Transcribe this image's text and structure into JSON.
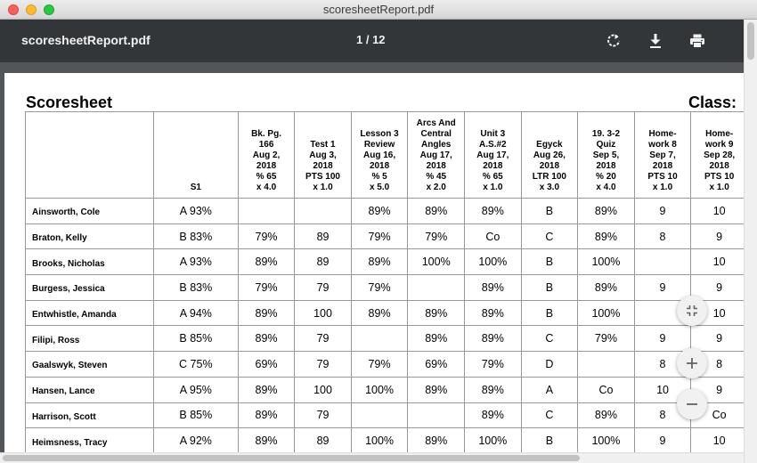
{
  "window": {
    "title": "scoresheetReport.pdf"
  },
  "toolbar": {
    "doc_name": "scoresheetReport.pdf",
    "page_indicator": "1 / 12",
    "icons": [
      "rotate-icon",
      "download-icon",
      "print-icon"
    ]
  },
  "sheet": {
    "title": "Scoresheet",
    "class_label": "Class:",
    "columns": [
      "",
      "S1",
      "Bk. Pg.\n166\nAug 2,\n2018\n% 65\nx 4.0",
      "Test 1\nAug 3,\n2018\nPTS 100\nx 1.0",
      "Lesson 3\nReview\nAug 16,\n2018\n% 5\nx 5.0",
      "Arcs And\nCentral\nAngles\nAug 17,\n2018\n% 45\nx 2.0",
      "Unit 3\nA.S.#2\nAug 17,\n2018\n% 65\nx 1.0",
      "Egyck\nAug 26,\n2018\nLTR 100\nx 3.0",
      "19. 3-2\nQuiz\nSep 5,\n2018\n% 20\nx 4.0",
      "Home-\nwork 8\nSep 7,\n2018\nPTS 10\nx 1.0",
      "Home-\nwork 9\nSep 28,\n2018\nPTS 10\nx 1.0"
    ],
    "rows": [
      [
        "Ainsworth, Cole",
        "A 93%",
        "",
        "",
        "89%",
        "89%",
        "89%",
        "B",
        "89%",
        "9",
        "10"
      ],
      [
        "Braton, Kelly",
        "B 83%",
        "79%",
        "89",
        "79%",
        "79%",
        "Co",
        "C",
        "89%",
        "8",
        "9"
      ],
      [
        "Brooks, Nicholas",
        "A 93%",
        "89%",
        "89",
        "89%",
        "100%",
        "100%",
        "B",
        "100%",
        "",
        "10"
      ],
      [
        "Burgess, Jessica",
        "B 83%",
        "79%",
        "79",
        "79%",
        "",
        "89%",
        "B",
        "89%",
        "9",
        "9"
      ],
      [
        "Entwhistle, Amanda",
        "A 94%",
        "89%",
        "100",
        "89%",
        "89%",
        "89%",
        "B",
        "100%",
        "",
        "10"
      ],
      [
        "Filipi, Ross",
        "B 85%",
        "89%",
        "79",
        "",
        "89%",
        "89%",
        "C",
        "79%",
        "9",
        "9"
      ],
      [
        "Gaalswyk, Steven",
        "C 75%",
        "69%",
        "79",
        "79%",
        "69%",
        "79%",
        "D",
        "",
        "8",
        "8"
      ],
      [
        "Hansen, Lance",
        "A 95%",
        "89%",
        "100",
        "100%",
        "89%",
        "89%",
        "A",
        "Co",
        "10",
        "9"
      ],
      [
        "Harrison, Scott",
        "B 85%",
        "89%",
        "79",
        "",
        "",
        "89%",
        "C",
        "89%",
        "8",
        "Co"
      ],
      [
        "Heimsness, Tracy",
        "A 92%",
        "89%",
        "89",
        "100%",
        "89%",
        "100%",
        "B",
        "100%",
        "9",
        "10"
      ]
    ]
  },
  "zoom_controls": {
    "icons": [
      "fit-to-page-icon",
      "zoom-in-icon",
      "zoom-out-icon"
    ]
  }
}
